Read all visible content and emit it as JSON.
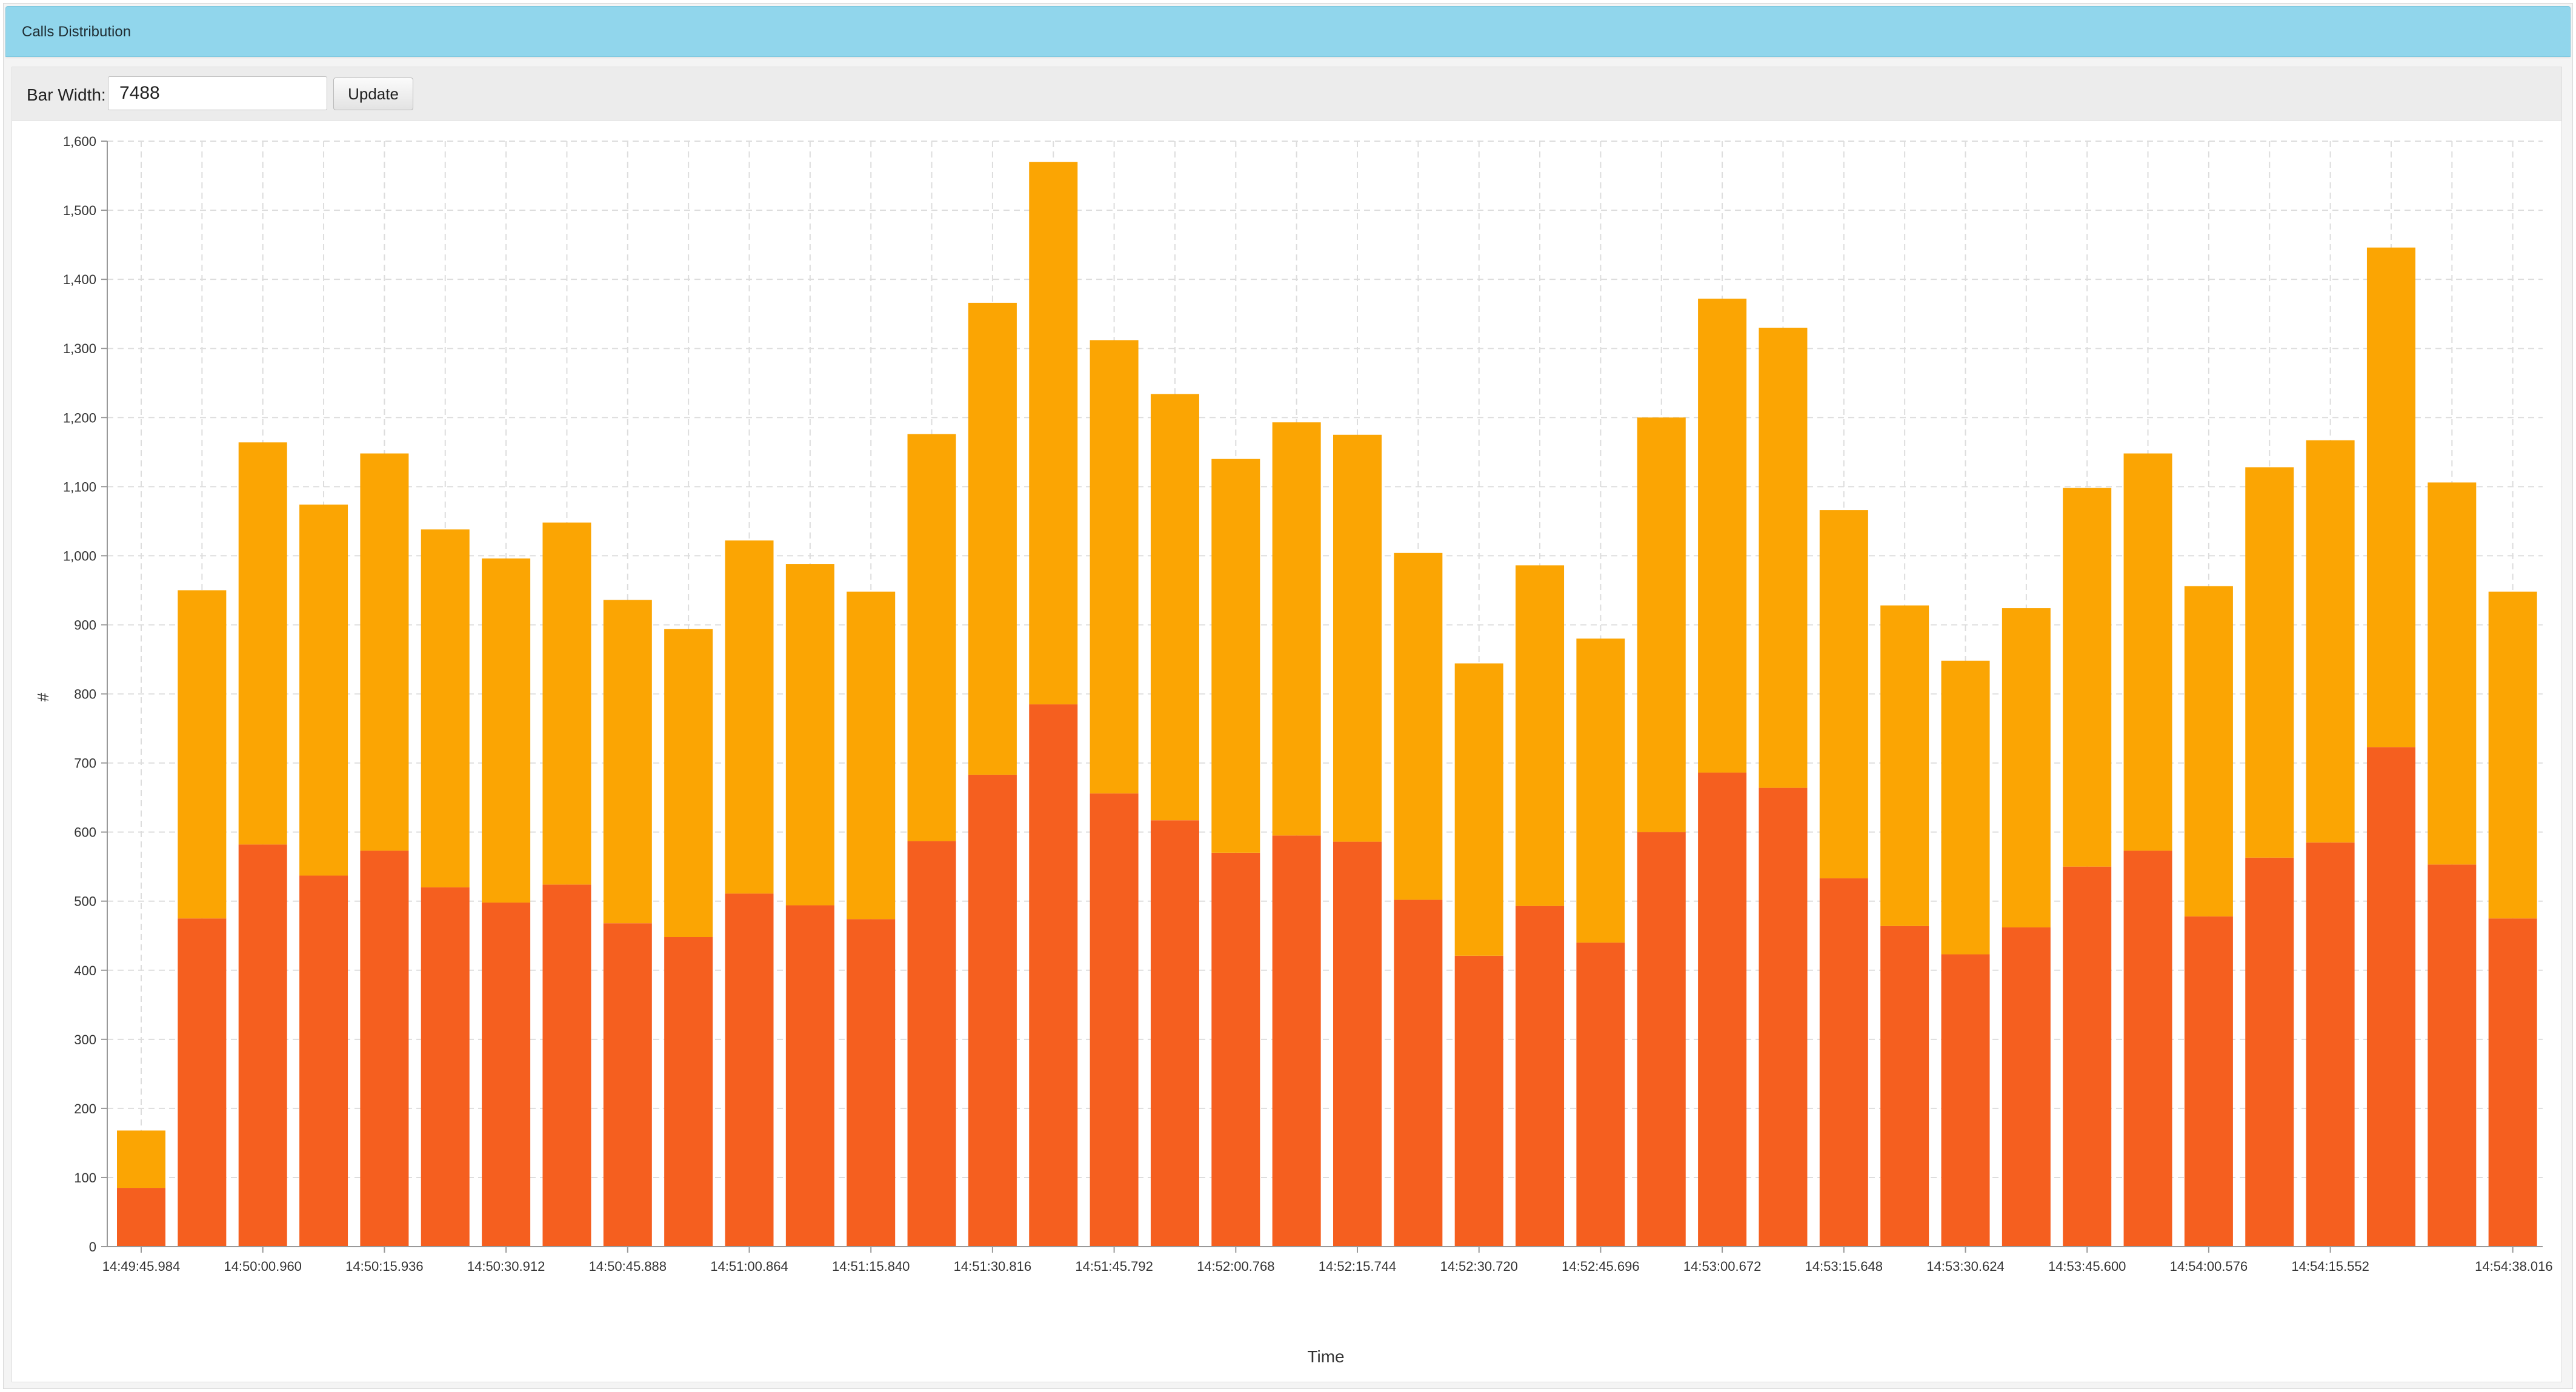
{
  "panel": {
    "title": "Calls Distribution"
  },
  "toolbar": {
    "bar_width_label": "Bar Width:",
    "bar_width_value": "7488",
    "update_label": "Update"
  },
  "colors": {
    "header_bg": "#91d6ec",
    "series_bottom": "#f55f1f",
    "series_top": "#fba503",
    "grid": "#dddddd"
  },
  "chart_data": {
    "type": "bar",
    "stacked": true,
    "xlabel": "Time",
    "ylabel": "#",
    "ylim": [
      0,
      1600
    ],
    "yticks": [
      0,
      100,
      200,
      300,
      400,
      500,
      600,
      700,
      800,
      900,
      1000,
      1100,
      1200,
      1300,
      1400,
      1500,
      1600
    ],
    "ytick_labels": [
      "0",
      "100",
      "200",
      "300",
      "400",
      "500",
      "600",
      "700",
      "800",
      "900",
      "1,000",
      "1,100",
      "1,200",
      "1,300",
      "1,400",
      "1,500",
      "1,600"
    ],
    "grid": true,
    "xtick_labels": [
      {
        "index": 0,
        "label": "14:49:45.984"
      },
      {
        "index": 2,
        "label": "14:50:00.960"
      },
      {
        "index": 4,
        "label": "14:50:15.936"
      },
      {
        "index": 6,
        "label": "14:50:30.912"
      },
      {
        "index": 8,
        "label": "14:50:45.888"
      },
      {
        "index": 10,
        "label": "14:51:00.864"
      },
      {
        "index": 12,
        "label": "14:51:15.840"
      },
      {
        "index": 14,
        "label": "14:51:30.816"
      },
      {
        "index": 16,
        "label": "14:51:45.792"
      },
      {
        "index": 18,
        "label": "14:52:00.768"
      },
      {
        "index": 20,
        "label": "14:52:15.744"
      },
      {
        "index": 22,
        "label": "14:52:30.720"
      },
      {
        "index": 24,
        "label": "14:52:45.696"
      },
      {
        "index": 26,
        "label": "14:53:00.672"
      },
      {
        "index": 28,
        "label": "14:53:15.648"
      },
      {
        "index": 30,
        "label": "14:53:30.624"
      },
      {
        "index": 32,
        "label": "14:53:45.600"
      },
      {
        "index": 34,
        "label": "14:54:00.576"
      },
      {
        "index": 36,
        "label": "14:54:15.552"
      },
      {
        "index": 39,
        "label": "14:54:38.016"
      }
    ],
    "series": [
      {
        "values": [
          85,
          475,
          582,
          537,
          573,
          520,
          498,
          524,
          468,
          448,
          511,
          494,
          474,
          587,
          683,
          785,
          656,
          617,
          570,
          595,
          586,
          502,
          421,
          493,
          440,
          600,
          686,
          664,
          533,
          464,
          423,
          462,
          550,
          573,
          478,
          563,
          585,
          723,
          553,
          475
        ]
      },
      {
        "values": [
          83,
          475,
          582,
          537,
          575,
          518,
          498,
          524,
          468,
          446,
          511,
          494,
          474,
          589,
          683,
          785,
          656,
          617,
          570,
          598,
          589,
          502,
          423,
          493,
          440,
          600,
          686,
          666,
          533,
          464,
          425,
          462,
          548,
          575,
          478,
          565,
          582,
          723,
          553,
          473
        ]
      }
    ]
  }
}
